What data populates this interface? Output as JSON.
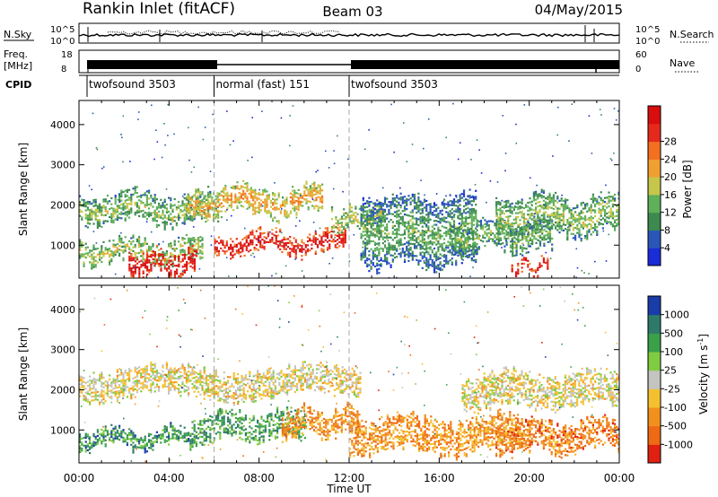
{
  "header": {
    "title": "Rankin Inlet (fitACF)",
    "beam": "Beam 03",
    "date": "04/May/2015"
  },
  "strip": {
    "nsky_label": "N.Sky",
    "nsky_ticks": [
      "10^5",
      "10^0"
    ],
    "nsearch_label": "N.Search",
    "nsearch_ticks": [
      "10^5",
      "10^0"
    ],
    "freq_label_1": "Freq.",
    "freq_label_2": "[MHz]",
    "freq_ticks": [
      "18",
      "8"
    ],
    "nave_label": "Nave",
    "nave_ticks": [
      "60",
      "0"
    ],
    "cpid_label": "CPID",
    "cpid_segments": [
      {
        "name": "twofsound 3503",
        "start": 0.0,
        "end": 6.0
      },
      {
        "name": "normal (fast) 151",
        "start": 6.0,
        "end": 12.0
      },
      {
        "name": "twofsound 3503",
        "start": 12.0,
        "end": 24.0
      }
    ]
  },
  "chart_data": [
    {
      "type": "heatmap",
      "title": "",
      "xlabel": "",
      "ylabel": "Slant Range [km]",
      "xlim": [
        0,
        24
      ],
      "ylim": [
        180,
        4600
      ],
      "yticks": [
        "1000",
        "2000",
        "3000",
        "4000"
      ],
      "colorbar": {
        "label": "Power [dB]",
        "ticks": [
          "4",
          "8",
          "12",
          "16",
          "20",
          "24",
          "28"
        ],
        "colors": [
          "#1a2cd8",
          "#2a56b8",
          "#3c8a50",
          "#5fb05a",
          "#c6c64a",
          "#f0a030",
          "#f27020",
          "#e52a1c",
          "#d80d0d"
        ]
      },
      "layers": [
        {
          "t0": 0.0,
          "t1": 6.2,
          "r0": 1500,
          "r1": 2350,
          "level": 0.35
        },
        {
          "t0": 0.0,
          "t1": 5.5,
          "r0": 520,
          "r1": 1200,
          "level": 0.4
        },
        {
          "t0": 4.8,
          "t1": 10.8,
          "r0": 1700,
          "r1": 2500,
          "level": 0.55
        },
        {
          "t0": 6.0,
          "t1": 11.8,
          "r0": 750,
          "r1": 1380,
          "level": 0.9
        },
        {
          "t0": 2.2,
          "t1": 5.2,
          "r0": 220,
          "r1": 900,
          "level": 0.95
        },
        {
          "t0": 11.2,
          "t1": 13.4,
          "r0": 1300,
          "r1": 2000,
          "level": 0.45
        },
        {
          "t0": 12.5,
          "t1": 17.6,
          "r0": 420,
          "r1": 2300,
          "level": 0.25
        },
        {
          "t0": 16.5,
          "t1": 21.0,
          "r0": 800,
          "r1": 1700,
          "level": 0.3
        },
        {
          "t0": 18.5,
          "t1": 24.0,
          "r0": 1200,
          "r1": 2300,
          "level": 0.35
        },
        {
          "t0": 19.2,
          "t1": 20.8,
          "r0": 260,
          "r1": 700,
          "level": 0.9
        }
      ]
    },
    {
      "type": "heatmap",
      "title": "",
      "xlabel": "Time UT",
      "ylabel": "Slant Range [km]",
      "xlim": [
        0,
        24
      ],
      "ylim": [
        180,
        4600
      ],
      "xticks": [
        "00:00",
        "04:00",
        "08:00",
        "12:00",
        "16:00",
        "20:00",
        "00:00"
      ],
      "yticks": [
        "1000",
        "2000",
        "3000",
        "4000"
      ],
      "colorbar": {
        "label": "Velocity [m s^-1]",
        "ticks": [
          "1000",
          "500",
          "100",
          "25",
          "-25",
          "-100",
          "-500",
          "-1000"
        ],
        "colors": [
          "#1a3ca8",
          "#2e7a6a",
          "#3aa04a",
          "#80cc40",
          "#c4c4c0",
          "#f5c030",
          "#f2901e",
          "#ee6a14",
          "#e02010"
        ]
      },
      "layers": [
        {
          "t0": 0.0,
          "t1": 12.5,
          "r0": 1750,
          "r1": 2600,
          "level": 0.55
        },
        {
          "t0": 17.0,
          "t1": 24.0,
          "r0": 1500,
          "r1": 2500,
          "level": 0.55
        },
        {
          "t0": 0.0,
          "t1": 5.0,
          "r0": 500,
          "r1": 1100,
          "level": 0.2
        },
        {
          "t0": 5.0,
          "t1": 10.0,
          "r0": 700,
          "r1": 1500,
          "level": 0.25
        },
        {
          "t0": 9.0,
          "t1": 12.5,
          "r0": 800,
          "r1": 1600,
          "level": 0.75
        },
        {
          "t0": 12.0,
          "t1": 20.0,
          "r0": 400,
          "r1": 1400,
          "level": 0.75
        },
        {
          "t0": 18.5,
          "t1": 24.0,
          "r0": 400,
          "r1": 1300,
          "level": 0.8
        }
      ]
    }
  ]
}
